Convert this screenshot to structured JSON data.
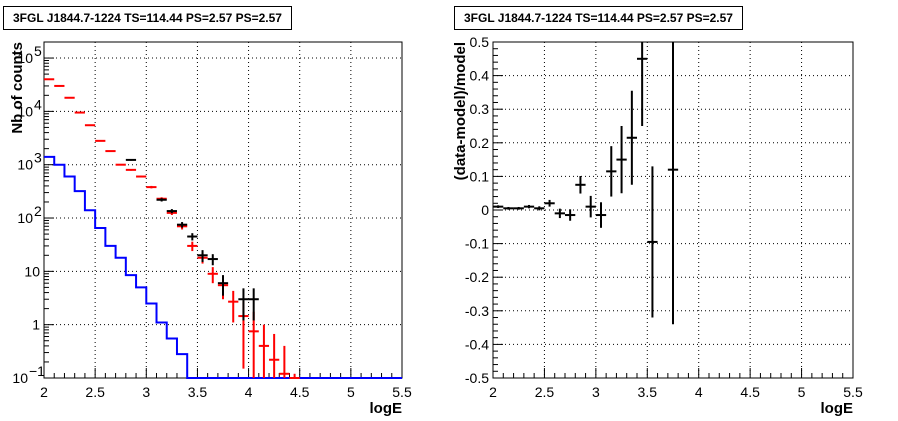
{
  "chart_data": [
    {
      "type": "line",
      "title": "3FGL J1844.7-1224 TS=114.44 PS=2.57 PS=2.57",
      "xlabel": "logE",
      "ylabel": "Nb of counts",
      "xlim": [
        2,
        5.5
      ],
      "ylim": [
        0.1,
        200000
      ],
      "yscale": "log",
      "grid": true,
      "x_ticks": [
        "2",
        "2.5",
        "3",
        "3.5",
        "4",
        "4.5",
        "5",
        "5.5"
      ],
      "series": [
        {
          "color": "#0000ff",
          "style": "step",
          "bin_edges": [
            2.0,
            2.1,
            2.2,
            2.3,
            2.4,
            2.5,
            2.6,
            2.7,
            2.8,
            2.9,
            3.0,
            3.1,
            3.2,
            3.3,
            3.4,
            3.5,
            3.6,
            3.7,
            3.8,
            3.9,
            4.0,
            4.1,
            4.2,
            4.3,
            4.4,
            4.5,
            4.6,
            4.7,
            4.8,
            4.9,
            5.0,
            5.1,
            5.2,
            5.3,
            5.4,
            5.5
          ],
          "values": [
            1400,
            1000,
            600,
            320,
            140,
            65,
            30,
            18,
            8.5,
            5,
            2.5,
            1.1,
            0.55,
            0.28,
            0.1,
            0.1,
            0.1,
            0.1,
            0.1,
            0.1,
            0.1,
            0.1,
            0.1,
            0.1,
            0.1,
            0.1,
            0.1,
            0.1,
            0.1,
            0.1,
            0.1,
            0.1,
            0.1,
            0.1,
            0.1
          ]
        },
        {
          "color": "#ff0000",
          "style": "errorbar",
          "x": [
            2.05,
            2.15,
            2.25,
            2.35,
            2.45,
            2.55,
            2.65,
            2.75,
            2.85,
            2.95,
            3.05,
            3.15,
            3.25,
            3.35,
            3.45,
            3.55,
            3.65,
            3.75,
            3.85,
            3.95,
            4.05,
            4.15,
            4.25,
            4.35,
            4.45
          ],
          "y": [
            40000,
            30000,
            18000,
            9500,
            5500,
            2800,
            1800,
            1000,
            800,
            600,
            380,
            230,
            125,
            70,
            30,
            18,
            9,
            5.5,
            2.7,
            1.45,
            0.75,
            0.4,
            0.22,
            0.12,
            0.07
          ],
          "yerr_low": [
            200,
            180,
            140,
            100,
            75,
            55,
            40,
            30,
            28,
            24,
            20,
            15,
            11,
            9,
            6,
            4,
            3,
            2.5,
            1.6,
            1.3,
            0.72,
            0.38,
            0.21,
            0.115,
            0.069
          ],
          "yerr_high": [
            200,
            180,
            140,
            100,
            75,
            55,
            40,
            30,
            28,
            24,
            20,
            15,
            11,
            9,
            6,
            4,
            3,
            2.5,
            1.6,
            1.3,
            1,
            0.6,
            0.45,
            0.28,
            0.05
          ]
        },
        {
          "color": "#000000",
          "style": "errorbar",
          "x": [
            2.85,
            3.15,
            3.25,
            3.35,
            3.45,
            3.55,
            3.65,
            3.75,
            3.95,
            4.05
          ],
          "y": [
            1230,
            220,
            135,
            75,
            45,
            20,
            17,
            6,
            3,
            3
          ],
          "yerr_low": [
            40,
            16,
            12,
            9,
            7,
            5,
            4,
            2.5,
            1.8,
            1.8
          ],
          "yerr_high": [
            40,
            16,
            12,
            9,
            7,
            5,
            4,
            2.5,
            1.8,
            1.8
          ]
        }
      ]
    },
    {
      "type": "scatter",
      "title": "3FGL J1844.7-1224 TS=114.44 PS=2.57 PS=2.57",
      "xlabel": "logE",
      "ylabel": "(data-model)/model",
      "xlim": [
        2,
        5.5
      ],
      "ylim": [
        -0.5,
        0.5
      ],
      "grid": true,
      "x_ticks": [
        "2",
        "2.5",
        "3",
        "3.5",
        "4",
        "4.5",
        "5",
        "5.5"
      ],
      "y_ticks": [
        "-0.5",
        "-0.4",
        "-0.3",
        "-0.2",
        "-0.1",
        "0",
        "0.1",
        "0.2",
        "0.3",
        "0.4",
        "0.5"
      ],
      "series": [
        {
          "color": "#000000",
          "style": "errorbar",
          "x": [
            2.05,
            2.15,
            2.25,
            2.35,
            2.45,
            2.55,
            2.65,
            2.75,
            2.85,
            2.95,
            3.05,
            3.15,
            3.25,
            3.35,
            3.45,
            3.55,
            3.75
          ],
          "y": [
            0.01,
            0.005,
            0.005,
            0.01,
            0.005,
            0.02,
            -0.01,
            -0.015,
            0.075,
            0.01,
            -0.015,
            0.115,
            0.15,
            0.215,
            0.45,
            -0.095,
            0.12
          ],
          "yerr": [
            0.004,
            0.004,
            0.004,
            0.005,
            0.006,
            0.01,
            0.014,
            0.017,
            0.026,
            0.032,
            0.038,
            0.075,
            0.1,
            0.14,
            0.2,
            0.225,
            0.46
          ]
        }
      ]
    }
  ]
}
